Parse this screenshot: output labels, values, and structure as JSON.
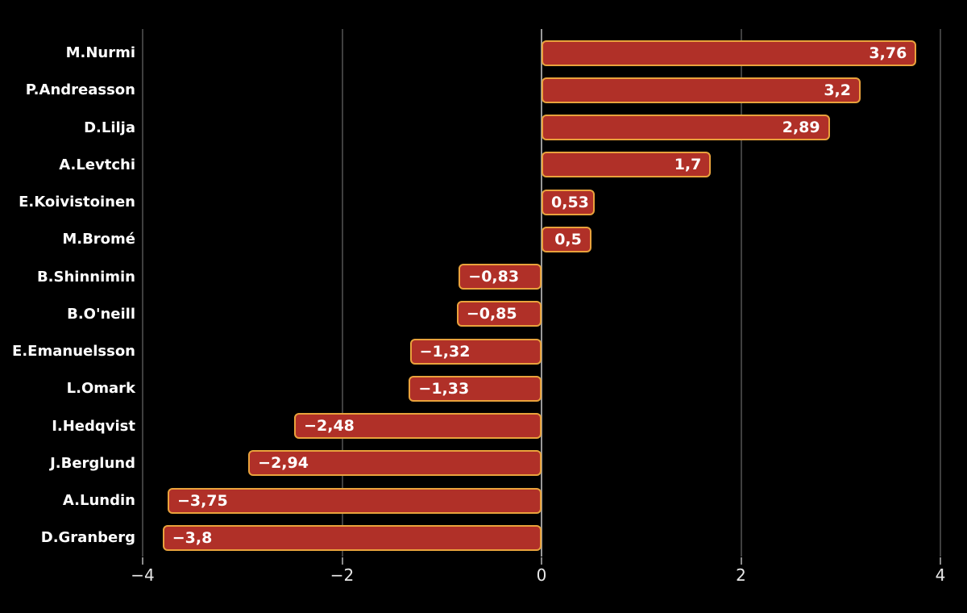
{
  "background": "#000000",
  "chart_data": {
    "type": "bar",
    "orientation": "horizontal",
    "title": "",
    "xlabel": "",
    "ylabel": "",
    "categories": [
      "M.Nurmi",
      "P.Andreasson",
      "D.Lilja",
      "A.Levtchi",
      "E.Koivistoinen",
      "M.Bromé",
      "B.Shinnimin",
      "B.O'neill",
      "E.Emanuelsson",
      "L.Omark",
      "I.Hedqvist",
      "J.Berglund",
      "A.Lundin",
      "D.Granberg"
    ],
    "values": [
      3.76,
      3.2,
      2.89,
      1.7,
      0.53,
      0.5,
      -0.83,
      -0.85,
      -1.32,
      -1.33,
      -2.48,
      -2.94,
      -3.75,
      -3.8
    ],
    "value_labels": [
      "3,76",
      "3,2",
      "2,89",
      "1,7",
      "0,53",
      "0,5",
      "−0,83",
      "−0,85",
      "−1,32",
      "−1,33",
      "−2,48",
      "−2,94",
      "−3,75",
      "−3,8"
    ],
    "xlim": [
      -4,
      4
    ],
    "x_ticks": [
      -4,
      -2,
      0,
      2,
      4
    ],
    "x_tick_labels": [
      "−4",
      "−2",
      "0",
      "2",
      "4"
    ],
    "grid": "vertical-only",
    "legend": "none",
    "colors": {
      "background": "#000000",
      "bar_fill": "#b03028",
      "bar_border": "#e9a23c",
      "value_text": "#ffffff",
      "category_text": "#ffffff",
      "gridline": "#3f3f3f",
      "zero_line": "#999999",
      "tick_label": "#e8e8e8"
    }
  }
}
